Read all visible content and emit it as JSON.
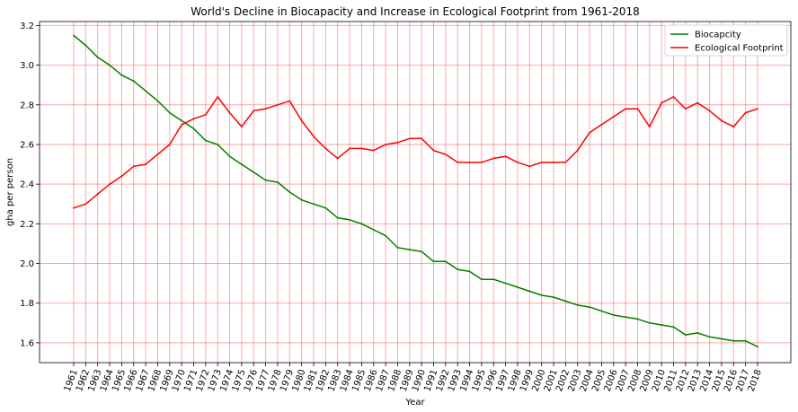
{
  "chart_data": {
    "type": "line",
    "title": "World's Decline in Biocapacity and Increase in Ecological Footprint from 1961-2018",
    "xlabel": "Year",
    "ylabel": "gha per person",
    "x": [
      "1961",
      "1962",
      "1963",
      "1964",
      "1965",
      "1966",
      "1967",
      "1968",
      "1969",
      "1970",
      "1971",
      "1972",
      "1973",
      "1974",
      "1975",
      "1976",
      "1977",
      "1978",
      "1979",
      "1980",
      "1981",
      "1982",
      "1983",
      "1984",
      "1985",
      "1986",
      "1987",
      "1988",
      "1989",
      "1990",
      "1991",
      "1992",
      "1993",
      "1994",
      "1995",
      "1996",
      "1997",
      "1998",
      "1999",
      "2000",
      "2001",
      "2002",
      "2003",
      "2004",
      "2005",
      "2006",
      "2007",
      "2008",
      "2009",
      "2010",
      "2011",
      "2012",
      "2013",
      "2014",
      "2015",
      "2016",
      "2017",
      "2018"
    ],
    "ylim": [
      1.5,
      3.22
    ],
    "yticks": [
      "1.6",
      "1.8",
      "2.0",
      "2.2",
      "2.4",
      "2.6",
      "2.8",
      "3.0",
      "3.2"
    ],
    "grid": true,
    "grid_color": "#ff0000",
    "legend_position": "top-right",
    "series": [
      {
        "name": "Biocapcity",
        "color": "#008000",
        "values": [
          3.15,
          3.1,
          3.04,
          3.0,
          2.95,
          2.92,
          2.87,
          2.82,
          2.76,
          2.72,
          2.68,
          2.62,
          2.6,
          2.54,
          2.5,
          2.46,
          2.42,
          2.41,
          2.36,
          2.32,
          2.3,
          2.28,
          2.23,
          2.22,
          2.2,
          2.17,
          2.14,
          2.08,
          2.07,
          2.06,
          2.01,
          2.01,
          1.97,
          1.96,
          1.92,
          1.92,
          1.9,
          1.88,
          1.86,
          1.84,
          1.83,
          1.81,
          1.79,
          1.78,
          1.76,
          1.74,
          1.73,
          1.72,
          1.7,
          1.69,
          1.68,
          1.64,
          1.65,
          1.63,
          1.62,
          1.61,
          1.61,
          1.58
        ]
      },
      {
        "name": "Ecological Footprint",
        "color": "#ff0000",
        "values": [
          2.28,
          2.3,
          2.35,
          2.4,
          2.44,
          2.49,
          2.5,
          2.55,
          2.6,
          2.7,
          2.73,
          2.75,
          2.84,
          2.76,
          2.69,
          2.77,
          2.78,
          2.8,
          2.82,
          2.72,
          2.64,
          2.58,
          2.53,
          2.58,
          2.58,
          2.57,
          2.6,
          2.61,
          2.63,
          2.63,
          2.57,
          2.55,
          2.51,
          2.51,
          2.51,
          2.53,
          2.54,
          2.51,
          2.49,
          2.51,
          2.51,
          2.51,
          2.57,
          2.66,
          2.7,
          2.74,
          2.78,
          2.78,
          2.69,
          2.81,
          2.84,
          2.78,
          2.81,
          2.77,
          2.72,
          2.69,
          2.76,
          2.78
        ]
      }
    ]
  }
}
